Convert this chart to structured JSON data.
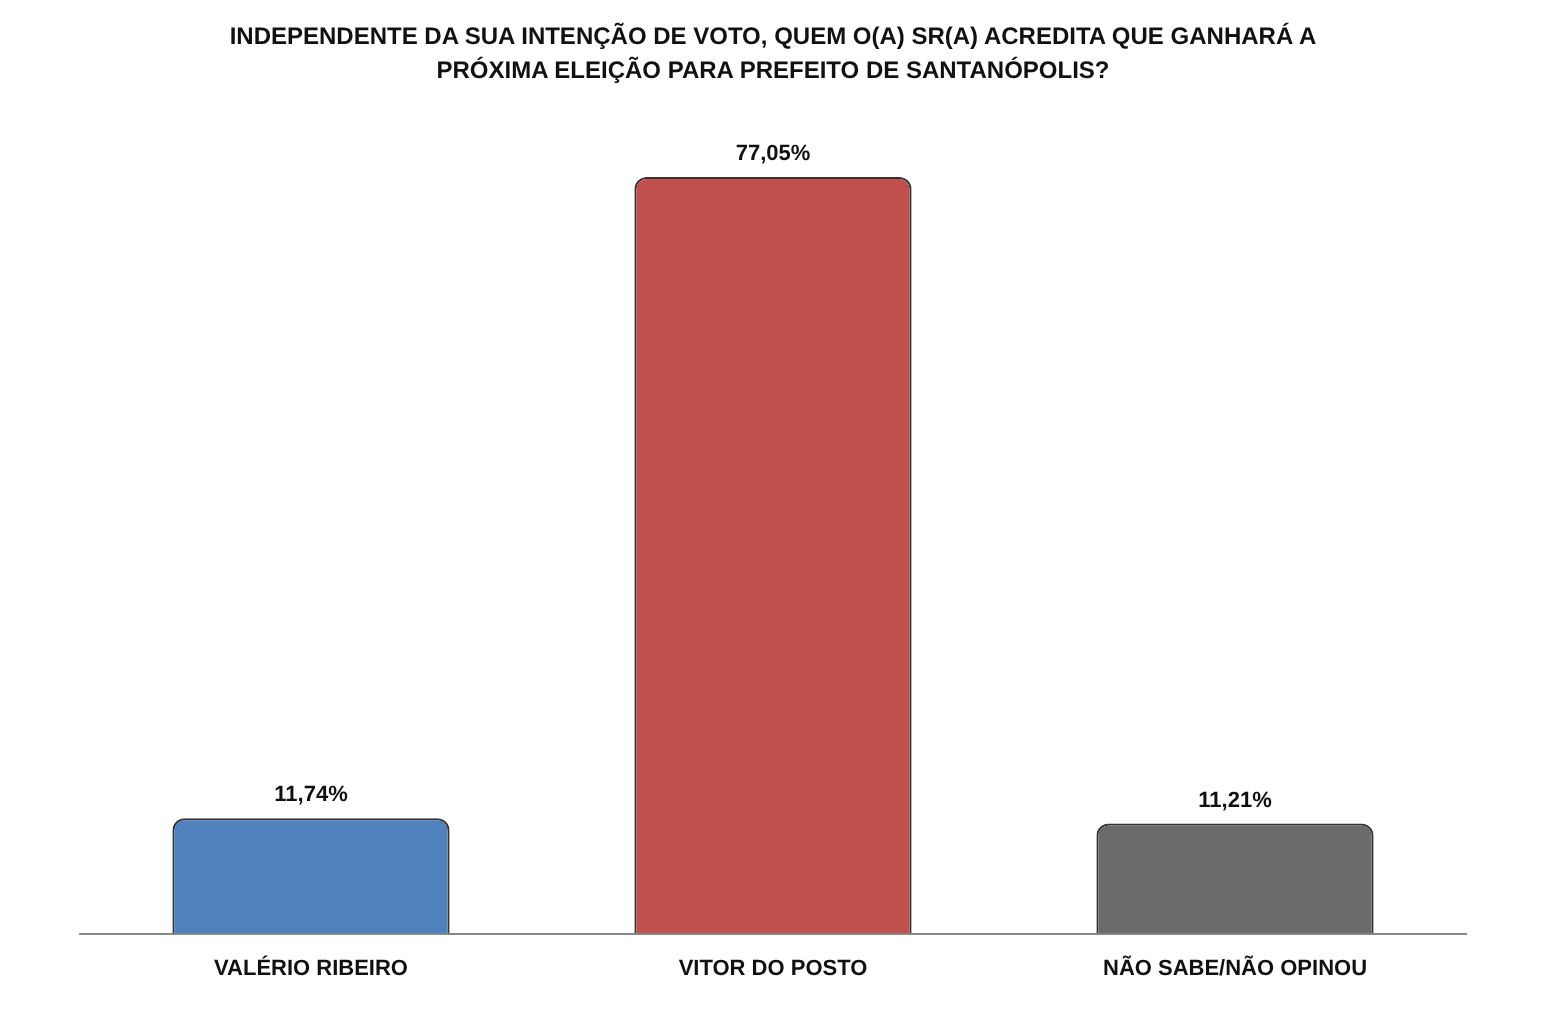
{
  "chart_data": {
    "type": "bar",
    "title": "INDEPENDENTE DA SUA INTENÇÃO DE VOTO, QUEM O(A) SR(A) ACREDITA QUE GANHARÁ A PRÓXIMA ELEIÇÃO PARA PREFEITO DE SANTANÓPOLIS?",
    "categories": [
      "VALÉRIO RIBEIRO",
      "VITOR DO POSTO",
      "NÃO SABE/NÃO OPINOU"
    ],
    "values": [
      11.74,
      77.05,
      11.21
    ],
    "colors": [
      "#4f81bd",
      "#c0504d",
      "#6b6b6b"
    ],
    "value_labels": [
      "11,74%",
      "77,05%",
      "11,21%"
    ],
    "tick_labels": "x",
    "grid": false,
    "legend": false
  }
}
